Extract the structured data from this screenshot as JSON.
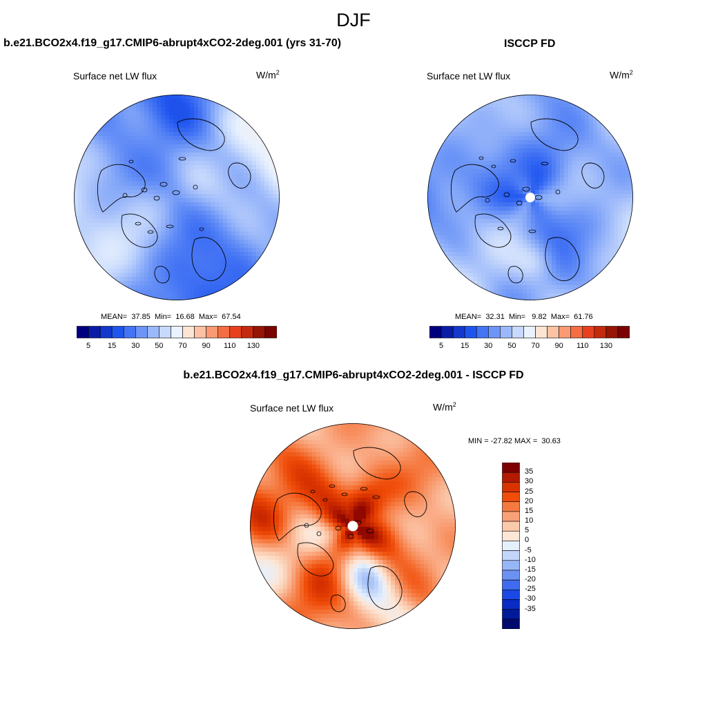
{
  "page": {
    "suptitle": "DJF"
  },
  "panels": [
    {
      "title": "b.e21.BCO2x4.f19_g17.CMIP6-abrupt4xCO2-2deg.001 (yrs 31-70)",
      "variable": "Surface net LW flux",
      "units_base": "W/m",
      "units_sup": "2",
      "stats_text": "MEAN=  37.85  Min=  16.68  Max=  67.54",
      "field": "abs",
      "pole_hole": false
    },
    {
      "title": "ISCCP FD",
      "variable": "Surface net LW flux",
      "units_base": "W/m",
      "units_sup": "2",
      "stats_text": "MEAN=  32.31  Min=   9.82  Max=  61.76",
      "field": "obs",
      "pole_hole": true
    },
    {
      "title": "b.e21.BCO2x4.f19_g17.CMIP6-abrupt4xCO2-2deg.001 - ISCCP FD",
      "variable": "Surface net LW flux",
      "units_base": "W/m",
      "units_sup": "2",
      "stats_text": "MIN = -27.82 MAX =  30.63",
      "field": "diff",
      "pole_hole": true
    }
  ],
  "abs_colorbar": {
    "orientation": "horizontal",
    "colors": [
      "#00007f",
      "#0a1ca6",
      "#1438cc",
      "#1f55ef",
      "#4474f4",
      "#6c95f7",
      "#9bb8fa",
      "#c7d9fc",
      "#e9f2fe",
      "#fde5d3",
      "#fcc2a4",
      "#f99a74",
      "#f46d43",
      "#e8401c",
      "#c42a0d",
      "#961505",
      "#7a0403"
    ],
    "tick_labels": [
      "5",
      "15",
      "30",
      "50",
      "70",
      "90",
      "110",
      "130"
    ]
  },
  "diff_colorbar": {
    "orientation": "vertical",
    "colors_top_to_bottom": [
      "#7f0000",
      "#b31a00",
      "#d93300",
      "#f04d0a",
      "#f57a40",
      "#f9a077",
      "#fbc9ab",
      "#fde6d6",
      "#e6f0fd",
      "#c2d6fa",
      "#97b6f7",
      "#6b92f2",
      "#3f6bee",
      "#1a48e6",
      "#0a2bc4",
      "#001a99",
      "#000a6e"
    ],
    "tick_labels": [
      "35",
      "30",
      "25",
      "20",
      "15",
      "10",
      "5",
      "0",
      "-5",
      "-10",
      "-15",
      "-20",
      "-25",
      "-30",
      "-35"
    ]
  },
  "map_colors": {
    "coast": "#000000",
    "border": "#000000",
    "background": "#ffffff"
  }
}
